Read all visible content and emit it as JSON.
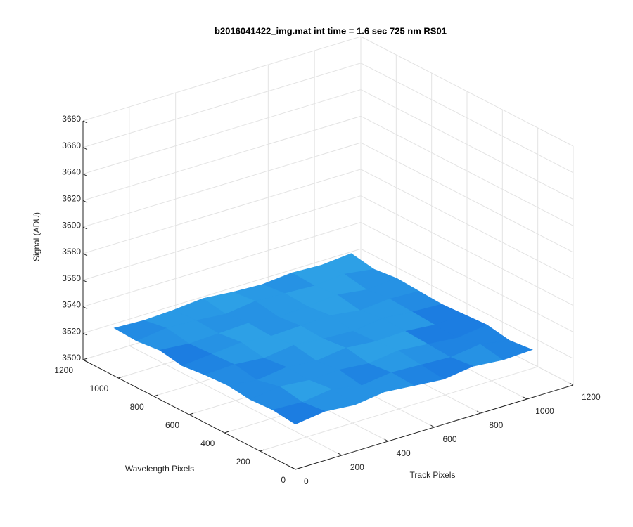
{
  "chart_data": {
    "type": "surface3d",
    "title": "b2016041422_img.mat int time = 1.6 sec  725 nm RS01",
    "xlabel": "Track Pixels",
    "ylabel": "Wavelength Pixels",
    "zlabel": "Signal (ADU)",
    "xlim": [
      0,
      1200
    ],
    "xticks": [
      0,
      200,
      400,
      600,
      800,
      1000,
      1200
    ],
    "ylim": [
      0,
      1200
    ],
    "yticks": [
      0,
      200,
      400,
      600,
      800,
      1000,
      1200
    ],
    "zlim": [
      3500,
      3680
    ],
    "zticks": [
      3500,
      3520,
      3540,
      3560,
      3580,
      3600,
      3620,
      3640,
      3660,
      3680
    ],
    "grid": true,
    "colormap": [
      "#0b4fd0",
      "#1a78e0",
      "#2b9ee6",
      "#4cb8e8"
    ],
    "x": [
      0,
      128,
      256,
      384,
      512,
      640,
      768,
      896,
      1024
    ],
    "y": [
      0,
      128,
      256,
      384,
      512,
      640,
      768,
      896,
      1024
    ],
    "z": [
      [
        3534,
        3537,
        3535,
        3538,
        3536,
        3534,
        3537,
        3535,
        3536
      ],
      [
        3536,
        3535,
        3538,
        3534,
        3537,
        3536,
        3535,
        3538,
        3534
      ],
      [
        3535,
        3538,
        3536,
        3537,
        3535,
        3538,
        3536,
        3534,
        3537
      ],
      [
        3537,
        3534,
        3537,
        3535,
        3538,
        3536,
        3537,
        3535,
        3536
      ],
      [
        3536,
        3537,
        3535,
        3538,
        3536,
        3535,
        3538,
        3536,
        3535
      ],
      [
        3534,
        3536,
        3538,
        3536,
        3537,
        3538,
        3535,
        3537,
        3536
      ],
      [
        3537,
        3535,
        3536,
        3537,
        3535,
        3536,
        3538,
        3535,
        3537
      ],
      [
        3535,
        3538,
        3537,
        3535,
        3538,
        3537,
        3536,
        3538,
        3535
      ],
      [
        3536,
        3535,
        3536,
        3538,
        3536,
        3535,
        3537,
        3536,
        3538
      ]
    ]
  }
}
